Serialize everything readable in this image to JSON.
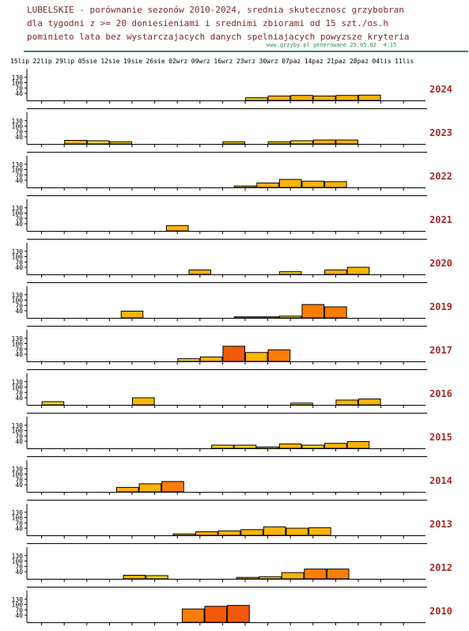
{
  "header": {
    "lines": [
      "LUBELSKIE - porównanie sezonów 2010-2024, srednia skutecznosc grzybobran",
      "dla tygodni z >= 20 doniesieniami i srednimi zbiorami od 15 szt./os.h",
      "pominieto lata bez wystarczajacych danych spelniajacych powyzsze kryteria"
    ],
    "credit": "www.grzyby.pl generowane 25.05.02  4:15"
  },
  "colors": {
    "low": "#f2d21a",
    "mid": "#fbb406",
    "high": "#fb7d06",
    "top": "#f05a0a",
    "year_label": "#a52a2a",
    "credit": "#2e8b57"
  },
  "chart_data": {
    "type": "bar",
    "x": [
      "15lip",
      "22lip",
      "29lip",
      "05sie",
      "12sie",
      "19sie",
      "26sie",
      "02wrz",
      "09wrz",
      "16wrz",
      "23wrz",
      "30wrz",
      "07paz",
      "14paz",
      "21paz",
      "28paz",
      "04lis",
      "11lis"
    ],
    "y_ticks": [
      130,
      100,
      70,
      40
    ],
    "ylim": [
      0,
      160
    ],
    "panels": [
      {
        "year": "2024",
        "bars": [
          {
            "s": 10,
            "v": 15
          },
          {
            "s": 11,
            "v": 25
          },
          {
            "s": 12,
            "v": 28
          },
          {
            "s": 13,
            "v": 25
          },
          {
            "s": 14,
            "v": 28
          },
          {
            "s": 15,
            "v": 30
          }
        ]
      },
      {
        "year": "2023",
        "bars": [
          {
            "s": 2,
            "v": 20
          },
          {
            "s": 3,
            "v": 18
          },
          {
            "s": 4,
            "v": 12
          },
          {
            "s": 9,
            "v": 12
          },
          {
            "s": 11,
            "v": 12
          },
          {
            "s": 12,
            "v": 18
          },
          {
            "s": 13,
            "v": 22
          },
          {
            "s": 14,
            "v": 22
          }
        ]
      },
      {
        "year": "2022",
        "bars": [
          {
            "s": 9.5,
            "v": 8
          },
          {
            "s": 10.5,
            "v": 25
          },
          {
            "s": 11.5,
            "v": 45
          },
          {
            "s": 12.5,
            "v": 35
          },
          {
            "s": 13.5,
            "v": 32
          }
        ]
      },
      {
        "year": "2021",
        "bars": [
          {
            "s": 6.5,
            "v": 30
          }
        ]
      },
      {
        "year": "2020",
        "bars": [
          {
            "s": 7.5,
            "v": 25
          },
          {
            "s": 11.5,
            "v": 15
          },
          {
            "s": 13.5,
            "v": 25
          },
          {
            "s": 14.5,
            "v": 40
          }
        ]
      },
      {
        "year": "2019",
        "bars": [
          {
            "s": 4.5,
            "v": 38
          },
          {
            "s": 9.5,
            "v": 6
          },
          {
            "s": 10.5,
            "v": 6
          },
          {
            "s": 11.5,
            "v": 10
          },
          {
            "s": 12.5,
            "v": 75
          },
          {
            "s": 13.5,
            "v": 62
          }
        ]
      },
      {
        "year": "2017",
        "bars": [
          {
            "s": 7,
            "v": 15
          },
          {
            "s": 8,
            "v": 25
          },
          {
            "s": 9,
            "v": 85
          },
          {
            "s": 10,
            "v": 50
          },
          {
            "s": 11,
            "v": 65
          }
        ]
      },
      {
        "year": "2016",
        "bars": [
          {
            "s": 1,
            "v": 18
          },
          {
            "s": 5,
            "v": 40
          },
          {
            "s": 12,
            "v": 10
          },
          {
            "s": 14,
            "v": 27
          },
          {
            "s": 15,
            "v": 33
          }
        ]
      },
      {
        "year": "2015",
        "bars": [
          {
            "s": 8.5,
            "v": 18
          },
          {
            "s": 9.5,
            "v": 18
          },
          {
            "s": 10.5,
            "v": 8
          },
          {
            "s": 11.5,
            "v": 25
          },
          {
            "s": 12.5,
            "v": 18
          },
          {
            "s": 13.5,
            "v": 28
          },
          {
            "s": 14.5,
            "v": 38
          }
        ]
      },
      {
        "year": "2014",
        "bars": [
          {
            "s": 4.3,
            "v": 25
          },
          {
            "s": 5.3,
            "v": 45
          },
          {
            "s": 6.3,
            "v": 58
          }
        ]
      },
      {
        "year": "2013",
        "bars": [
          {
            "s": 6.8,
            "v": 8
          },
          {
            "s": 7.8,
            "v": 20
          },
          {
            "s": 8.8,
            "v": 25
          },
          {
            "s": 9.8,
            "v": 32
          },
          {
            "s": 10.8,
            "v": 48
          },
          {
            "s": 11.8,
            "v": 40
          },
          {
            "s": 12.8,
            "v": 43
          }
        ]
      },
      {
        "year": "2012",
        "bars": [
          {
            "s": 4.6,
            "v": 20
          },
          {
            "s": 5.6,
            "v": 18
          },
          {
            "s": 9.6,
            "v": 8
          },
          {
            "s": 10.6,
            "v": 12
          },
          {
            "s": 11.6,
            "v": 35
          },
          {
            "s": 12.6,
            "v": 55
          },
          {
            "s": 13.6,
            "v": 55
          }
        ]
      },
      {
        "year": "2010",
        "bars": [
          {
            "s": 7.2,
            "v": 75
          },
          {
            "s": 8.2,
            "v": 90
          },
          {
            "s": 9.2,
            "v": 95
          }
        ]
      }
    ]
  }
}
